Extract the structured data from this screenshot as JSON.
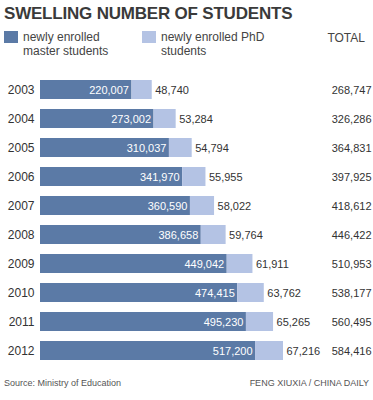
{
  "chart_data": {
    "type": "bar",
    "title": "SWELLING NUMBER OF STUDENTS",
    "orientation": "horizontal",
    "stacked": true,
    "data_labels": true,
    "tick_labels": "y",
    "categories": [
      "2003",
      "2004",
      "2005",
      "2006",
      "2007",
      "2008",
      "2009",
      "2010",
      "2011",
      "2012"
    ],
    "series": [
      {
        "name": "newly enrolled master students",
        "color": "#5b7aa6",
        "values": [
          220007,
          273002,
          310037,
          341970,
          360590,
          386658,
          449042,
          474415,
          495230,
          517200
        ],
        "value_labels": [
          "220,007",
          "273,002",
          "310,037",
          "341,970",
          "360,590",
          "386,658",
          "449,042",
          "474,415",
          "495,230",
          "517,200"
        ]
      },
      {
        "name": "newly enrolled PhD students",
        "color": "#b4c3e4",
        "values": [
          48740,
          53284,
          54794,
          55955,
          58022,
          59764,
          61911,
          63762,
          65265,
          67216
        ],
        "value_labels": [
          "48,740",
          "53,284",
          "54,794",
          "55,955",
          "58,022",
          "59,764",
          "61,911",
          "63,762",
          "65,265",
          "67,216"
        ]
      }
    ],
    "totals": {
      "label": "TOTAL",
      "values": [
        268747,
        326286,
        364831,
        397925,
        418612,
        446422,
        510953,
        538177,
        560495,
        584416
      ],
      "value_labels": [
        "268,747",
        "326,286",
        "364,831",
        "397,925",
        "418,612",
        "446,422",
        "510,953",
        "538,177",
        "560,495",
        "584,416"
      ]
    },
    "source": "Source: Ministry of Education",
    "credit": "FENG XIUXIA / CHINA DAILY"
  }
}
